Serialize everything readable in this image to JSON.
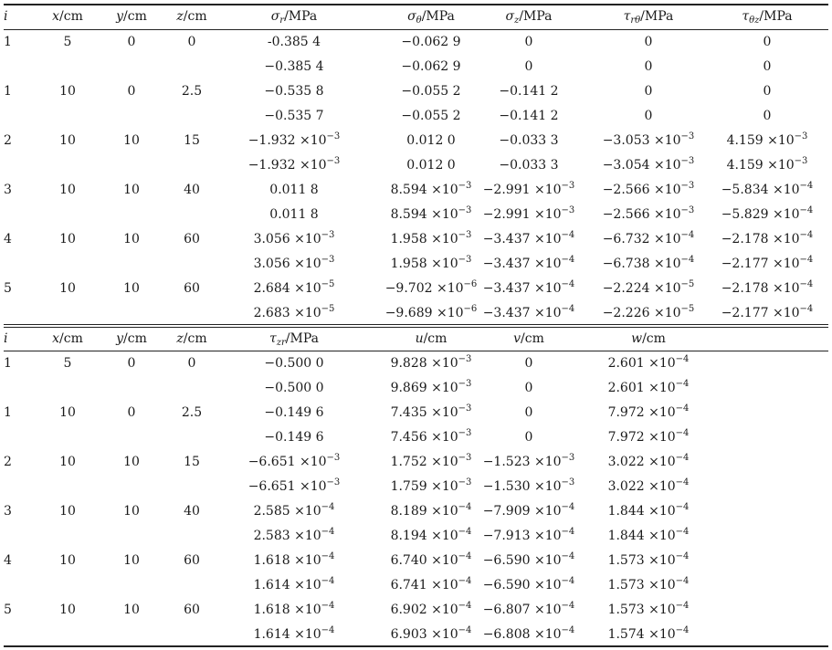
{
  "table": {
    "part1": {
      "header": [
        {
          "sym": "i",
          "unit": ""
        },
        {
          "sym": "x",
          "unit": "/cm"
        },
        {
          "sym": "y",
          "unit": "/cm"
        },
        {
          "sym": "z",
          "unit": "/cm"
        },
        {
          "sym": "σ",
          "sub": "r",
          "unit": "/MPa"
        },
        {
          "sym": "σ",
          "sub": "θ",
          "unit": "/MPa"
        },
        {
          "sym": "σ",
          "sub": "z",
          "unit": "/MPa"
        },
        {
          "sym": "τ",
          "sub": "rθ",
          "unit": "/MPa"
        },
        {
          "sym": "τ",
          "sub": "θz",
          "unit": "/MPa"
        }
      ],
      "rows": [
        [
          "1",
          "5",
          "0",
          "0",
          {
            "m": "-0.385 4"
          },
          {
            "m": "−0.062 9"
          },
          {
            "m": "0"
          },
          {
            "m": "0"
          },
          {
            "m": "0"
          }
        ],
        [
          "",
          "",
          "",
          "",
          {
            "m": "−0.385 4"
          },
          {
            "m": "−0.062 9"
          },
          {
            "m": "0"
          },
          {
            "m": "0"
          },
          {
            "m": "0"
          }
        ],
        [
          "1",
          "10",
          "0",
          "2.5",
          {
            "m": "−0.535 8"
          },
          {
            "m": "−0.055 2"
          },
          {
            "m": "−0.141 2"
          },
          {
            "m": "0"
          },
          {
            "m": "0"
          }
        ],
        [
          "",
          "",
          "",
          "",
          {
            "m": "−0.535 7"
          },
          {
            "m": "−0.055 2"
          },
          {
            "m": "−0.141 2"
          },
          {
            "m": "0"
          },
          {
            "m": "0"
          }
        ],
        [
          "2",
          "10",
          "10",
          "15",
          {
            "m": "−1.932",
            "e": "−3"
          },
          {
            "m": "0.012 0"
          },
          {
            "m": "−0.033 3"
          },
          {
            "m": "−3.053",
            "e": "−3"
          },
          {
            "m": "4.159",
            "e": "−3"
          }
        ],
        [
          "",
          "",
          "",
          "",
          {
            "m": "−1.932",
            "e": "−3"
          },
          {
            "m": "0.012 0"
          },
          {
            "m": "−0.033 3"
          },
          {
            "m": "−3.054",
            "e": "−3"
          },
          {
            "m": "4.159",
            "e": "−3"
          }
        ],
        [
          "3",
          "10",
          "10",
          "40",
          {
            "m": "0.011 8"
          },
          {
            "m": "8.594",
            "e": "−3"
          },
          {
            "m": "−2.991",
            "e": "−3"
          },
          {
            "m": "−2.566",
            "e": "−3"
          },
          {
            "m": "−5.834 ",
            "e": "−4"
          }
        ],
        [
          "",
          "",
          "",
          "",
          {
            "m": "0.011 8"
          },
          {
            "m": "8.594",
            "e": "−3"
          },
          {
            "m": "−2.991",
            "e": "−3"
          },
          {
            "m": "−2.566",
            "e": "−3"
          },
          {
            "m": "−5.829 ",
            "e": "−4"
          }
        ],
        [
          "4",
          "10",
          "10",
          "60",
          {
            "m": "3.056",
            "e": "−3"
          },
          {
            "m": "1.958",
            "e": "−3"
          },
          {
            "m": "−3.437",
            "e": "−4"
          },
          {
            "m": "−6.732",
            "e": "−4"
          },
          {
            "m": "−2.178",
            "e": "−4"
          }
        ],
        [
          "",
          "",
          "",
          "",
          {
            "m": "3.056",
            "e": "−3"
          },
          {
            "m": "1.958",
            "e": "−3"
          },
          {
            "m": "−3.437",
            "e": "−4"
          },
          {
            "m": "−6.738",
            "e": "−4"
          },
          {
            "m": "−2.177",
            "e": "−4"
          }
        ],
        [
          "5",
          "10",
          "10",
          "60",
          {
            "m": "2.684",
            "e": "−5"
          },
          {
            "m": "−9.702",
            "e": "−6"
          },
          {
            "m": "−3.437",
            "e": "−4"
          },
          {
            "m": "−2.224",
            "e": "−5"
          },
          {
            "m": "−2.178",
            "e": "−4"
          }
        ],
        [
          "",
          "",
          "",
          "",
          {
            "m": "2.683",
            "e": "−5"
          },
          {
            "m": "−9.689",
            "e": "−6"
          },
          {
            "m": "−3.437",
            "e": "−4"
          },
          {
            "m": "−2.226",
            "e": "−5"
          },
          {
            "m": "−2.177",
            "e": "−4"
          }
        ]
      ]
    },
    "part2": {
      "header": [
        {
          "sym": "i",
          "unit": ""
        },
        {
          "sym": "x",
          "unit": "/cm"
        },
        {
          "sym": "y",
          "unit": "/cm"
        },
        {
          "sym": "z",
          "unit": "/cm"
        },
        {
          "sym": "τ",
          "sub": "zr",
          "unit": "/MPa"
        },
        {
          "sym": "u",
          "unit": "/cm"
        },
        {
          "sym": "v",
          "unit": "/cm"
        },
        {
          "sym": "w",
          "unit": "/cm"
        }
      ],
      "rows": [
        [
          "1",
          "5",
          "0",
          "0",
          {
            "m": "−0.500 0"
          },
          {
            "m": "9.828",
            "e": "−3"
          },
          {
            "m": "0"
          },
          {
            "m": "2.601",
            "e": "−4"
          }
        ],
        [
          "",
          "",
          "",
          "",
          {
            "m": "−0.500 0"
          },
          {
            "m": "9.869",
            "e": "−3"
          },
          {
            "m": "0"
          },
          {
            "m": "2.601",
            "e": "−4"
          }
        ],
        [
          "1",
          "10",
          "0",
          "2.5",
          {
            "m": "−0.149 6"
          },
          {
            "m": "7.435",
            "e": "−3"
          },
          {
            "m": "0"
          },
          {
            "m": "7.972",
            "e": "−4"
          }
        ],
        [
          "",
          "",
          "",
          "",
          {
            "m": "−0.149 6"
          },
          {
            "m": "7.456",
            "e": "−3"
          },
          {
            "m": "0"
          },
          {
            "m": "7.972",
            "e": "−4"
          }
        ],
        [
          "2",
          "10",
          "10",
          "15",
          {
            "m": "−6.651",
            "e": "−3"
          },
          {
            "m": "1.752",
            "e": "−3"
          },
          {
            "m": "−1.523",
            "e": "−3"
          },
          {
            "m": "3.022",
            "e": "−4"
          }
        ],
        [
          "",
          "",
          "",
          "",
          {
            "m": "−6.651",
            "e": "−3"
          },
          {
            "m": "1.759",
            "e": "−3"
          },
          {
            "m": "−1.530",
            "e": "−3"
          },
          {
            "m": "3.022",
            "e": "−4"
          }
        ],
        [
          "3",
          "10",
          "10",
          "40",
          {
            "m": "2.585",
            "e": "−4"
          },
          {
            "m": "8.189",
            "e": "−4"
          },
          {
            "m": "−7.909",
            "e": "−4"
          },
          {
            "m": "1.844",
            "e": "−4"
          }
        ],
        [
          "",
          "",
          "",
          "",
          {
            "m": "2.583",
            "e": "−4"
          },
          {
            "m": "8.194",
            "e": "−4"
          },
          {
            "m": "−7.913",
            "e": "−4"
          },
          {
            "m": "1.844",
            "e": "−4"
          }
        ],
        [
          "4",
          "10",
          "10",
          "60",
          {
            "m": "1.618",
            "e": "−4"
          },
          {
            "m": "6.740",
            "e": "−4"
          },
          {
            "m": "−6.590",
            "e": "−4"
          },
          {
            "m": "1.573",
            "e": "−4"
          }
        ],
        [
          "",
          "",
          "",
          "",
          {
            "m": "1.614",
            "e": "−4"
          },
          {
            "m": "6.741",
            "e": "−4"
          },
          {
            "m": "−6.590",
            "e": "−4"
          },
          {
            "m": "1.573",
            "e": "−4"
          }
        ],
        [
          "5",
          "10",
          "10",
          "60",
          {
            "m": "1.618",
            "e": "−4"
          },
          {
            "m": "6.902",
            "e": "−4"
          },
          {
            "m": "−6.807",
            "e": "−4"
          },
          {
            "m": "1.573",
            "e": "−4"
          }
        ],
        [
          "",
          "",
          "",
          "",
          {
            "m": "1.614",
            "e": "−4"
          },
          {
            "m": "6.903",
            "e": "−4"
          },
          {
            "m": "−6.808",
            "e": "−4"
          },
          {
            "m": "1.574",
            "e": "−4"
          }
        ]
      ]
    },
    "times_sign": "×",
    "base": "10"
  }
}
